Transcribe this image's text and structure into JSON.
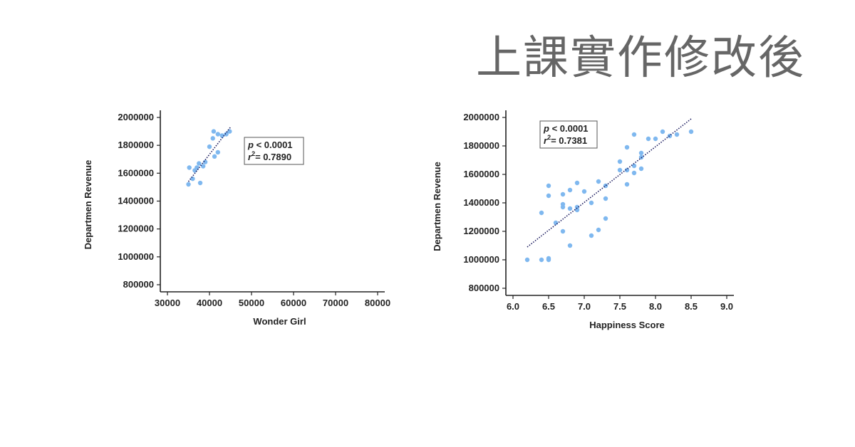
{
  "page": {
    "title": "上課實作修改後"
  },
  "chart_data": [
    {
      "type": "scatter",
      "xlabel": "Wonder Girl",
      "ylabel": "Departmen Revenue",
      "xlim": [
        30000,
        80000
      ],
      "ylim": [
        800000,
        2000000
      ],
      "xticks": [
        "30000",
        "40000",
        "50000",
        "60000",
        "70000",
        "80000"
      ],
      "yticks": [
        "800000",
        "1000000",
        "1200000",
        "1400000",
        "1600000",
        "1800000",
        "2000000"
      ],
      "stats": {
        "p_symbol": "p",
        "p_text": " < 0.0001",
        "r_symbol": "r",
        "r_sup": "2",
        "r_text": "= 0.7890"
      },
      "fit_line": {
        "x": [
          35000,
          45000
        ],
        "y": [
          1540000,
          1930000
        ]
      },
      "series": [
        {
          "color": "#7fb8ef",
          "x": [
            35000,
            35200,
            36000,
            36500,
            37000,
            37500,
            37800,
            38500,
            39000,
            40000,
            40800,
            41000,
            41200,
            42000,
            42000,
            43000,
            44000,
            44800
          ],
          "y": [
            1520000,
            1640000,
            1560000,
            1620000,
            1640000,
            1670000,
            1530000,
            1650000,
            1680000,
            1790000,
            1850000,
            1900000,
            1720000,
            1750000,
            1880000,
            1870000,
            1880000,
            1900000
          ]
        }
      ]
    },
    {
      "type": "scatter",
      "xlabel": "Happiness Score",
      "ylabel": "Departmen Revenue",
      "xlim": [
        6.0,
        9.0
      ],
      "ylim": [
        800000,
        2000000
      ],
      "xticks": [
        "6.0",
        "6.5",
        "7.0",
        "7.5",
        "8.0",
        "8.5",
        "9.0"
      ],
      "yticks": [
        "800000",
        "1000000",
        "1200000",
        "1400000",
        "1600000",
        "1800000",
        "2000000"
      ],
      "stats": {
        "p_symbol": "p",
        "p_text": " < 0.0001",
        "r_symbol": "r",
        "r_sup": "2",
        "r_text": "= 0.7381"
      },
      "fit_line": {
        "x": [
          6.2,
          8.5
        ],
        "y": [
          1090000,
          1990000
        ]
      },
      "series": [
        {
          "color": "#7fb8ef",
          "x": [
            6.2,
            6.4,
            6.4,
            6.5,
            6.5,
            6.5,
            6.5,
            6.6,
            6.7,
            6.7,
            6.7,
            6.7,
            6.8,
            6.8,
            6.8,
            6.9,
            6.9,
            6.9,
            7.0,
            7.1,
            7.1,
            7.2,
            7.2,
            7.3,
            7.3,
            7.3,
            7.5,
            7.5,
            7.6,
            7.6,
            7.6,
            7.7,
            7.7,
            7.7,
            7.8,
            7.8,
            7.8,
            7.9,
            8.0,
            8.1,
            8.2,
            8.3,
            8.5
          ],
          "y": [
            1000000,
            1000000,
            1330000,
            1000000,
            1010000,
            1450000,
            1520000,
            1260000,
            1200000,
            1370000,
            1390000,
            1460000,
            1100000,
            1360000,
            1490000,
            1350000,
            1370000,
            1540000,
            1480000,
            1170000,
            1400000,
            1210000,
            1550000,
            1290000,
            1430000,
            1520000,
            1630000,
            1690000,
            1530000,
            1630000,
            1790000,
            1610000,
            1660000,
            1880000,
            1640000,
            1720000,
            1750000,
            1850000,
            1850000,
            1900000,
            1870000,
            1880000,
            1900000
          ]
        }
      ]
    }
  ]
}
